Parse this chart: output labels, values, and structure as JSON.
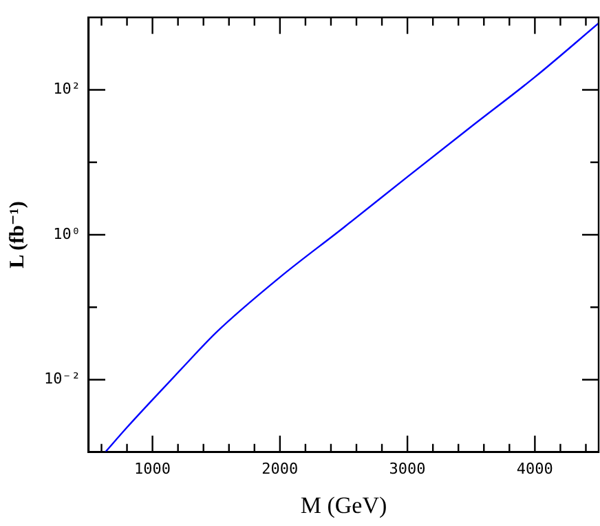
{
  "chart_data": {
    "type": "line",
    "xlabel": "M (GeV)",
    "ylabel": "L (fb⁻¹)",
    "log": "y",
    "grid": false,
    "legend": false,
    "marker": "none",
    "line_style": "solid",
    "xlim": [
      500,
      4500
    ],
    "ylim": [
      0.001,
      1000
    ],
    "xticks": [
      {
        "value": 600,
        "label": null
      },
      {
        "value": 800,
        "label": null
      },
      1000,
      {
        "value": 1200,
        "label": null
      },
      {
        "value": 1400,
        "label": null
      },
      {
        "value": 1600,
        "label": null
      },
      {
        "value": 1800,
        "label": null
      },
      2000,
      {
        "value": 2200,
        "label": null
      },
      {
        "value": 2400,
        "label": null
      },
      {
        "value": 2600,
        "label": null
      },
      {
        "value": 2800,
        "label": null
      },
      3000,
      {
        "value": 3200,
        "label": null
      },
      {
        "value": 3400,
        "label": null
      },
      {
        "value": 3600,
        "label": null
      },
      {
        "value": 3800,
        "label": null
      },
      4000,
      {
        "value": 4200,
        "label": null
      },
      {
        "value": 4400,
        "label": null
      }
    ],
    "yticks": [
      {
        "value": 0.01,
        "label": "10⁻²"
      },
      {
        "value": 0.1,
        "label": null
      },
      {
        "value": 1,
        "label": "10⁰"
      },
      {
        "value": 10,
        "label": null
      },
      {
        "value": 100,
        "label": "10²"
      }
    ],
    "series": [
      {
        "color": "#0000ff",
        "x": [
          629,
          800,
          1000,
          1250,
          1500,
          2000,
          2500,
          3000,
          3500,
          4000,
          4500
        ],
        "values": [
          0.001,
          0.0022,
          0.0053,
          0.0156,
          0.045,
          0.26,
          1.26,
          6.3,
          31,
          150,
          830
        ]
      }
    ]
  }
}
